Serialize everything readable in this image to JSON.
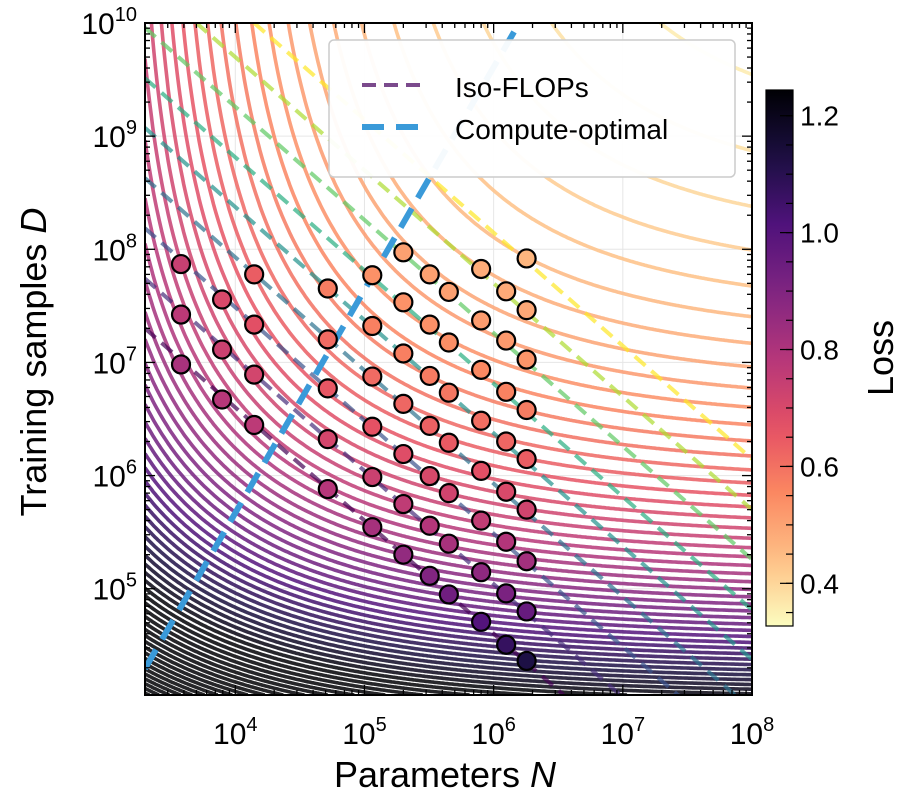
{
  "chart_data": {
    "type": "scatter",
    "title": "",
    "xlabel": "Parameters",
    "xlabel_var": "N",
    "ylabel": "Training samples",
    "ylabel_var": "D",
    "xscale": "log",
    "yscale": "log",
    "xlim": [
      2000,
      100000000
    ],
    "ylim": [
      11500,
      10000000000
    ],
    "x_ticks": [
      {
        "base": "10",
        "exp": "4",
        "value": 10000.0
      },
      {
        "base": "10",
        "exp": "5",
        "value": 100000.0
      },
      {
        "base": "10",
        "exp": "6",
        "value": 1000000.0
      },
      {
        "base": "10",
        "exp": "7",
        "value": 10000000.0
      },
      {
        "base": "10",
        "exp": "8",
        "value": 100000000.0
      }
    ],
    "y_ticks": [
      {
        "base": "10",
        "exp": "5",
        "value": 100000.0
      },
      {
        "base": "10",
        "exp": "6",
        "value": 1000000.0
      },
      {
        "base": "10",
        "exp": "7",
        "value": 10000000.0
      },
      {
        "base": "10",
        "exp": "8",
        "value": 100000000.0
      },
      {
        "base": "10",
        "exp": "9",
        "value": 1000000000.0
      },
      {
        "base": "10",
        "exp": "10",
        "value": 10000000000.0
      }
    ],
    "grid": true,
    "loss_model": {
      "E": 0.3,
      "A": 3.9,
      "alpha": 0.3,
      "B": 8.5,
      "beta": 0.239
    },
    "contour_levels": {
      "start": 0.34,
      "stop": 1.7,
      "step": 0.02
    },
    "iso_flops": [
      240000000000.0,
      660000000000.0,
      1840000000000.0,
      5100000000000.0,
      14200000000000.0,
      39000000000000.0,
      109000000000000.0,
      300000000000000.0,
      840000000000000.0
    ],
    "iso_flop_colors": [
      "#440154",
      "#472d7b",
      "#3b528b",
      "#2c728e",
      "#21918c",
      "#28ae80",
      "#5ec962",
      "#addc30",
      "#fde725"
    ],
    "compute_optimal": {
      "log10_D_intercept": -2.21,
      "exponent": 1.97,
      "color": "#3a9ad9"
    },
    "points": [
      {
        "N": 3800.0,
        "D": [
          74000000.0,
          26500000.0,
          9600000.0
        ]
      },
      {
        "N": 7900.0,
        "D": [
          36000000.0,
          13000000.0,
          4700000.0
        ]
      },
      {
        "N": 14000.0,
        "D": [
          60000000.0,
          21600000.0,
          7800000.0,
          2800000.0
        ]
      },
      {
        "N": 52000.0,
        "D": [
          45000000.0,
          16000000.0,
          5900000.0,
          2100000.0,
          760000.0
        ]
      },
      {
        "N": 115000.0,
        "D": [
          59000000.0,
          21000000.0,
          7500000.0,
          2700000.0,
          970000.0,
          350000.0
        ]
      },
      {
        "N": 200000.0,
        "D": [
          94000000.0,
          34000000.0,
          12000000.0,
          4300000.0,
          1550000.0,
          560000.0,
          200000.0
        ]
      },
      {
        "N": 320000.0,
        "D": [
          60000000.0,
          21600000.0,
          7600000.0,
          2750000.0,
          990000.0,
          360000.0,
          130000.0
        ]
      },
      {
        "N": 450000.0,
        "D": [
          42000000.0,
          15000000.0,
          5400000.0,
          1950000.0,
          700000.0,
          250000.0,
          89000.0
        ]
      },
      {
        "N": 800000.0,
        "D": [
          67000000.0,
          23500000.0,
          8600000.0,
          3050000.0,
          1100000.0,
          400000.0,
          140000.0,
          51000.0
        ]
      },
      {
        "N": 1250000.0,
        "D": [
          42500000.0,
          15600000.0,
          5500000.0,
          2000000.0,
          720000.0,
          260000.0,
          91000.0,
          32000.0
        ]
      },
      {
        "N": 1800000.0,
        "D": [
          83000000.0,
          29000000.0,
          10600000.0,
          3800000.0,
          1400000.0,
          500000.0,
          175000.0,
          63000.0,
          23000.0
        ]
      }
    ],
    "legend": {
      "placement": "top-right",
      "entries": [
        {
          "label": "Iso-FLOPs",
          "color": "#7b4a8c",
          "style": "dashed"
        },
        {
          "label": "Compute-optimal",
          "color": "#3a9ad9",
          "style": "dashed"
        }
      ]
    },
    "colorbar": {
      "label": "Loss",
      "colormap": "magma_r",
      "range": [
        0.327,
        1.244
      ],
      "ticks": [
        "0.4",
        "0.6",
        "0.8",
        "1.0",
        "1.2"
      ]
    }
  }
}
